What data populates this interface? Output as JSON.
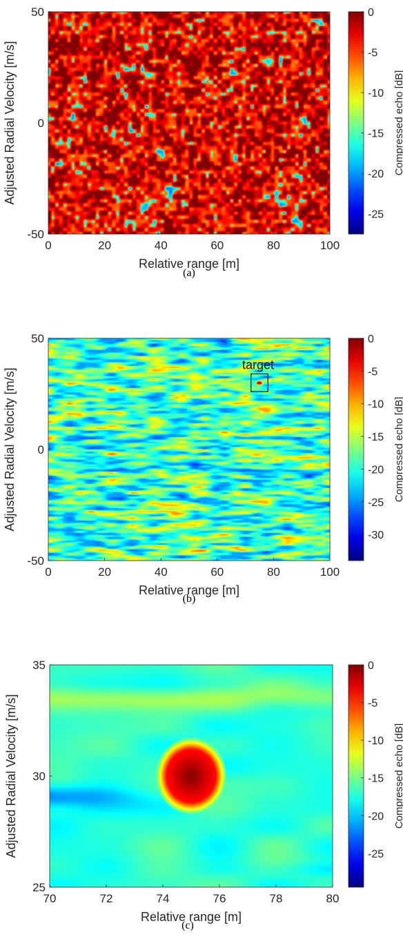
{
  "chart_data": [
    {
      "type": "heatmap",
      "panel_caption": "(a)",
      "xlabel": "Relative range [m]",
      "ylabel": "Adjusted Radial Velocity [m/s]",
      "colorbar_label": "Compressed echo [dB]",
      "xlim": [
        0,
        100
      ],
      "ylim": [
        -50,
        50
      ],
      "xticks": [
        0,
        20,
        40,
        60,
        80,
        100
      ],
      "yticks": [
        -50,
        0,
        50
      ],
      "clim": [
        -27.5,
        0
      ],
      "colorbar_ticks": [
        0,
        -5,
        -10,
        -15,
        -20,
        -25
      ],
      "colormap": "jet",
      "texture": "speckle",
      "annotations": []
    },
    {
      "type": "heatmap",
      "panel_caption": "(b)",
      "xlabel": "Relative range [m]",
      "ylabel": "Adjusted Radial Velocity [m/s]",
      "colorbar_label": "Compressed echo [dB]",
      "xlim": [
        0,
        100
      ],
      "ylim": [
        -50,
        50
      ],
      "xticks": [
        0,
        20,
        40,
        60,
        80,
        100
      ],
      "yticks": [
        -50,
        0,
        50
      ],
      "clim": [
        -34,
        0
      ],
      "colorbar_ticks": [
        0,
        -5,
        -10,
        -15,
        -20,
        -25,
        -30
      ],
      "colormap": "jet",
      "texture": "streaks",
      "annotations": [
        {
          "text": "target",
          "x": 75,
          "y": 30,
          "box_half_width": 3,
          "box_half_height": 4
        }
      ]
    },
    {
      "type": "heatmap",
      "panel_caption": "(c)",
      "xlabel": "Relative range [m]",
      "ylabel": "Adjusted Radial Velocity [m/s]",
      "colorbar_label": "Compressed echo [dB]",
      "xlim": [
        70,
        80
      ],
      "ylim": [
        25,
        35
      ],
      "xticks": [
        70,
        72,
        74,
        76,
        78,
        80
      ],
      "yticks": [
        25,
        30,
        35
      ],
      "clim": [
        -29.5,
        0
      ],
      "colorbar_ticks": [
        0,
        -5,
        -10,
        -15,
        -20,
        -25
      ],
      "colormap": "jet",
      "texture": "zoom",
      "peak": {
        "x": 75,
        "y": 30,
        "value": 0
      },
      "annotations": []
    }
  ]
}
